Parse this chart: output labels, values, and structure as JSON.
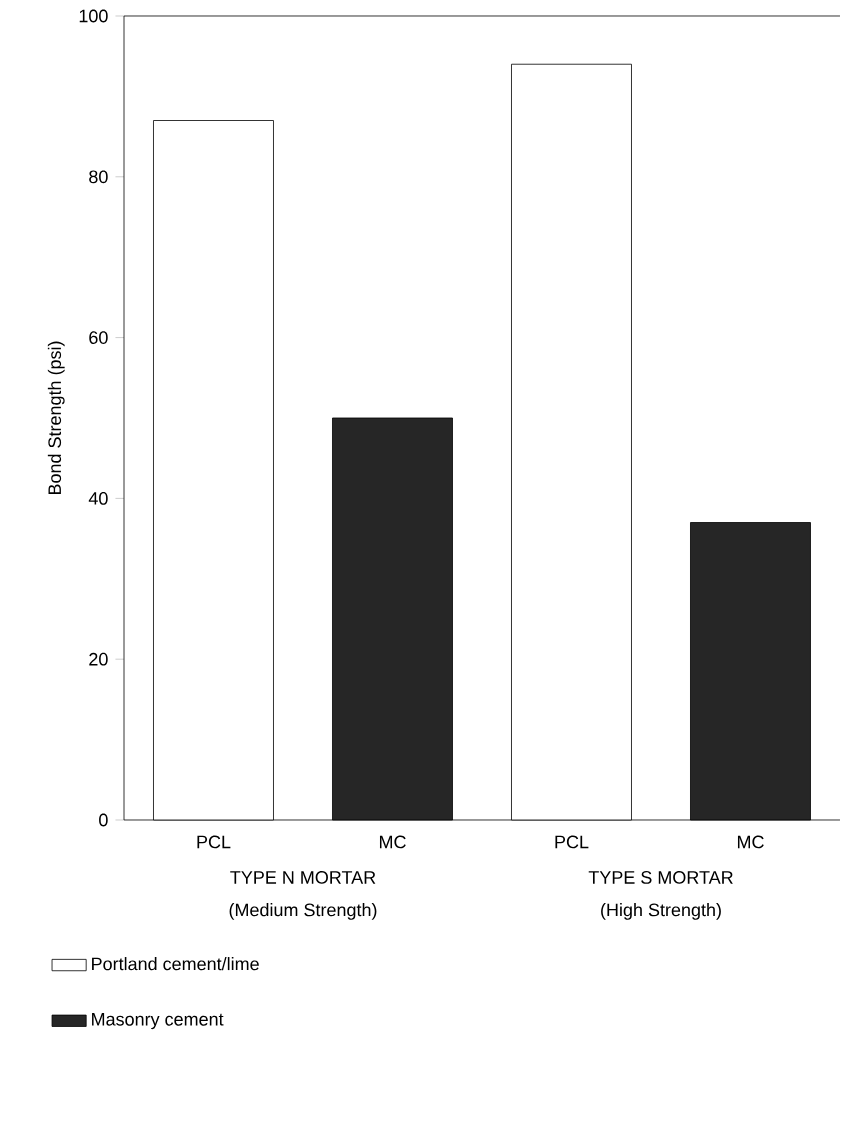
{
  "chart_data": {
    "type": "bar",
    "ylabel": "Bond Strength (psi)",
    "categories": [
      "PCL",
      "MC",
      "PCL",
      "MC"
    ],
    "series": [
      {
        "name": "Portland cement/lime",
        "color": "#ffffff",
        "values": [
          87,
          null,
          94,
          null
        ]
      },
      {
        "name": "Masonry cement",
        "color": "#262626",
        "values": [
          null,
          50,
          null,
          37
        ]
      }
    ],
    "annotations": [
      "TYPE N MORTAR",
      "(Medium Strength)",
      "TYPE S MORTAR",
      "(High Strength)"
    ],
    "ylim": [
      0,
      100
    ],
    "yticks": [
      0,
      20,
      40,
      60,
      80,
      100
    ],
    "grid": false,
    "legend": "bottom"
  }
}
